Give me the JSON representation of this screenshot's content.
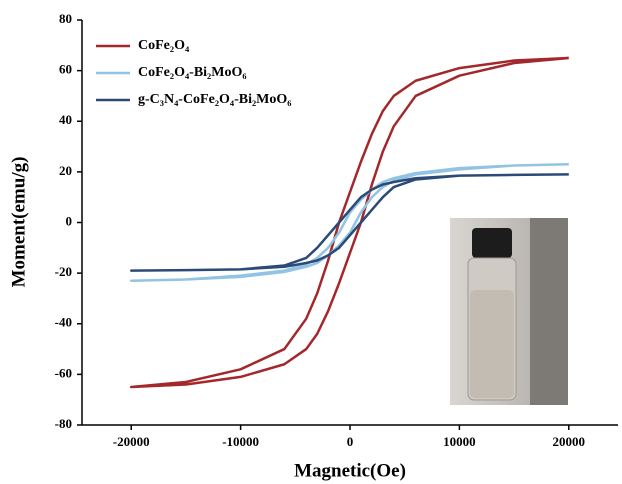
{
  "chart_data": {
    "type": "line",
    "x_label": "Magnetic(Oe)",
    "y_label": "Moment(emu/g)",
    "x": [
      20000,
      15000,
      10000,
      6000,
      4000,
      3000,
      2000,
      1000,
      0,
      -1000,
      -2000,
      -3000,
      -4000,
      -6000,
      -10000,
      -15000,
      -20000,
      -15000,
      -10000,
      -6000,
      -4000,
      -3000,
      -2000,
      -1000,
      0,
      1000,
      2000,
      3000,
      4000,
      6000,
      10000,
      15000,
      20000
    ],
    "series": [
      {
        "name": "CoFe₂O₄",
        "color": "#a3282b",
        "values": [
          65,
          64,
          61,
          56,
          50,
          44,
          35,
          24,
          12,
          0,
          -15,
          -28,
          -38,
          -50,
          -58,
          -63,
          -65,
          -64,
          -61,
          -56,
          -50,
          -44,
          -35,
          -24,
          -12,
          0,
          15,
          28,
          38,
          50,
          58,
          63,
          65
        ]
      },
      {
        "name": "CoFe₂O₄-Bi₂MoO₆",
        "color": "#92c3e3",
        "values": [
          23,
          22.5,
          21.5,
          19.5,
          17.5,
          16,
          13,
          9,
          4,
          -4,
          -10,
          -14,
          -16.5,
          -19,
          -21,
          -22.5,
          -23,
          -22.5,
          -21.5,
          -19.5,
          -17.5,
          -16,
          -13,
          -9,
          -4,
          4,
          10,
          14,
          16.5,
          19,
          21,
          22.5,
          23
        ]
      },
      {
        "name": "g-C₃N₄-CoFe₂O₄-Bi₂MoO₆",
        "color": "#2b4a78",
        "values": [
          19,
          18.8,
          18.5,
          17.5,
          16,
          15,
          13,
          10,
          5,
          0,
          -5,
          -10,
          -14,
          -17,
          -18.5,
          -18.8,
          -19,
          -18.8,
          -18.5,
          -17.5,
          -16,
          -15,
          -13,
          -10,
          -5,
          0,
          5,
          10,
          14,
          17,
          18.5,
          18.8,
          19
        ]
      }
    ],
    "xlim": [
      -24500,
      24500
    ],
    "xticks": [
      -20000,
      -10000,
      0,
      10000,
      20000
    ],
    "ylim": [
      -80,
      80
    ],
    "yticks": [
      -80,
      -60,
      -40,
      -20,
      0,
      20,
      40,
      60,
      80
    ],
    "legend": "upper left"
  }
}
